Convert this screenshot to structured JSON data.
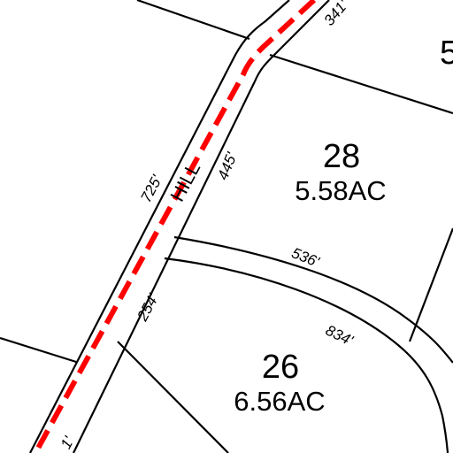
{
  "road": {
    "name": "HILL",
    "centerline_color": "#ff0000"
  },
  "lots": [
    {
      "number": "28",
      "area": "5.58AC"
    },
    {
      "number": "26",
      "area": "6.56AC"
    }
  ],
  "partial_lot_label": "5",
  "dimensions": {
    "d341": "341'",
    "d445": "445'",
    "d725": "725'",
    "d536": "536'",
    "d254": "254'",
    "d834": "834'",
    "d1": "1'"
  }
}
